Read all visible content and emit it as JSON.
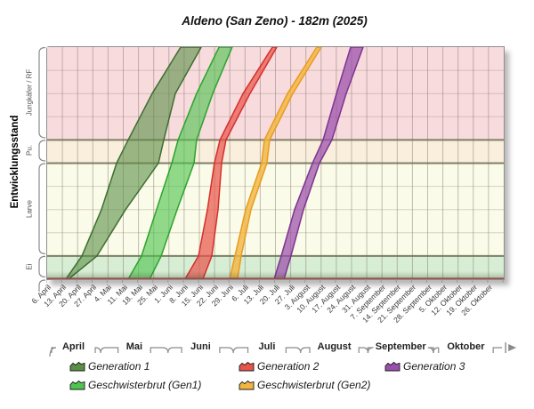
{
  "chart_data": {
    "type": "area",
    "title": "Aldeno (San Zeno) - 182m (2025)",
    "y_label": "Entwicklungsstand",
    "ylim": [
      0,
      10
    ],
    "x_range_weeks": [
      0,
      30
    ],
    "grid": true,
    "legend_position": "bottom",
    "stages": [
      {
        "label": "Ei",
        "range": [
          0,
          1
        ],
        "fill": "#d7eed5"
      },
      {
        "label": "Larve",
        "range": [
          1,
          5
        ],
        "fill": "#fafbe8"
      },
      {
        "label": "Pu.",
        "range": [
          5,
          6
        ],
        "fill": "#faeedd"
      },
      {
        "label": "Jungkäfer / RF",
        "range": [
          6,
          10
        ],
        "fill": "#f8dbdd"
      }
    ],
    "stage_boundaries": [
      1,
      5,
      6
    ],
    "x_weeks": [
      "6. April",
      "13. April",
      "20. April",
      "27. April",
      "4. Mai",
      "11. Mai",
      "18. Mai",
      "25. Mai",
      "1. Juni",
      "8. Juni",
      "15. Juni",
      "22. Juni",
      "29. Juni",
      "6. Juli",
      "13. Juli",
      "20. Juli",
      "27. Juli",
      "3. August",
      "10. August",
      "17. August",
      "24. August",
      "31. August",
      "7. September",
      "14. September",
      "21. September",
      "28. September",
      "5. Oktober",
      "12. Oktober",
      "19. Oktober",
      "26. Oktober"
    ],
    "months": [
      {
        "label": "April",
        "start": 0,
        "end": 3.57
      },
      {
        "label": "Mai",
        "start": 3.57,
        "end": 8.0
      },
      {
        "label": "Juni",
        "start": 8.0,
        "end": 12.29
      },
      {
        "label": "Juli",
        "start": 12.29,
        "end": 16.71
      },
      {
        "label": "August",
        "start": 16.71,
        "end": 21.14
      },
      {
        "label": "September",
        "start": 21.14,
        "end": 25.43
      },
      {
        "label": "Oktober",
        "start": 25.43,
        "end": 29.71
      }
    ],
    "series": [
      {
        "name": "Generation 1",
        "stroke": "#3c6e30",
        "fill": "#5a8f46",
        "opacity": 0.6,
        "legend_row": 0,
        "legend_col": 0,
        "lower": [
          [
            1.23,
            0
          ],
          [
            2.28,
            1
          ],
          [
            3.57,
            3
          ],
          [
            4.56,
            5
          ],
          [
            5.32,
            6
          ],
          [
            6.9,
            8
          ],
          [
            8.77,
            10
          ]
        ],
        "upper": [
          [
            1.4,
            0
          ],
          [
            3.27,
            1
          ],
          [
            5.15,
            3
          ],
          [
            7.31,
            5
          ],
          [
            7.66,
            6
          ],
          [
            8.42,
            8
          ],
          [
            10.12,
            10
          ]
        ]
      },
      {
        "name": "Geschwisterbrut (Gen1)",
        "stroke": "#2ca32c",
        "fill": "#4fc44f",
        "opacity": 0.62,
        "legend_row": 1,
        "legend_col": 0,
        "lower": [
          [
            5.32,
            0
          ],
          [
            6.2,
            1
          ],
          [
            7.19,
            3
          ],
          [
            8.19,
            5
          ],
          [
            8.6,
            6
          ],
          [
            9.82,
            8
          ],
          [
            11.29,
            10
          ]
        ],
        "upper": [
          [
            6.73,
            0
          ],
          [
            7.49,
            1
          ],
          [
            8.54,
            3
          ],
          [
            9.65,
            5
          ],
          [
            9.82,
            6
          ],
          [
            10.88,
            8
          ],
          [
            12.16,
            10
          ]
        ]
      },
      {
        "name": "Generation 2",
        "stroke": "#d62f2a",
        "fill": "#e8534a",
        "opacity": 0.7,
        "legend_row": 0,
        "legend_col": 1,
        "lower": [
          [
            9.06,
            0
          ],
          [
            9.94,
            1
          ],
          [
            10.53,
            3
          ],
          [
            10.99,
            5
          ],
          [
            11.35,
            6
          ],
          [
            12.87,
            8
          ],
          [
            14.8,
            10
          ]
        ],
        "upper": [
          [
            10.23,
            0
          ],
          [
            10.82,
            1
          ],
          [
            11.23,
            3
          ],
          [
            11.46,
            5
          ],
          [
            11.75,
            6
          ],
          [
            13.33,
            8
          ],
          [
            15.09,
            10
          ]
        ]
      },
      {
        "name": "Geschwisterbrut (Gen2)",
        "stroke": "#e89c1e",
        "fill": "#f3b541",
        "opacity": 0.8,
        "legend_row": 1,
        "legend_col": 1,
        "lower": [
          [
            11.99,
            0
          ],
          [
            12.34,
            1
          ],
          [
            13.04,
            3
          ],
          [
            14.09,
            5
          ],
          [
            14.27,
            6
          ],
          [
            15.79,
            8
          ],
          [
            17.72,
            10
          ]
        ],
        "upper": [
          [
            12.51,
            0
          ],
          [
            12.75,
            1
          ],
          [
            13.39,
            3
          ],
          [
            14.44,
            5
          ],
          [
            14.62,
            6
          ],
          [
            16.14,
            8
          ],
          [
            18.01,
            10
          ]
        ]
      },
      {
        "name": "Generation 3",
        "stroke": "#7e3390",
        "fill": "#9a4fab",
        "opacity": 0.72,
        "legend_row": 0,
        "legend_col": 2,
        "lower": [
          [
            14.91,
            0
          ],
          [
            15.38,
            1
          ],
          [
            16.26,
            3
          ],
          [
            17.43,
            5
          ],
          [
            18.13,
            6
          ],
          [
            19.01,
            8
          ],
          [
            19.94,
            10
          ]
        ],
        "upper": [
          [
            15.56,
            0
          ],
          [
            16.02,
            1
          ],
          [
            16.84,
            3
          ],
          [
            17.89,
            5
          ],
          [
            18.71,
            6
          ],
          [
            19.65,
            8
          ],
          [
            20.76,
            10
          ]
        ]
      }
    ],
    "colors": {
      "axis_baseline": "#9a4f45",
      "bracket": "#8a8a8a",
      "grid_v": "rgba(115,103,95,0.42)",
      "grid_h": "rgba(135,120,105,0.30)",
      "boundary": "#7d8064"
    }
  }
}
